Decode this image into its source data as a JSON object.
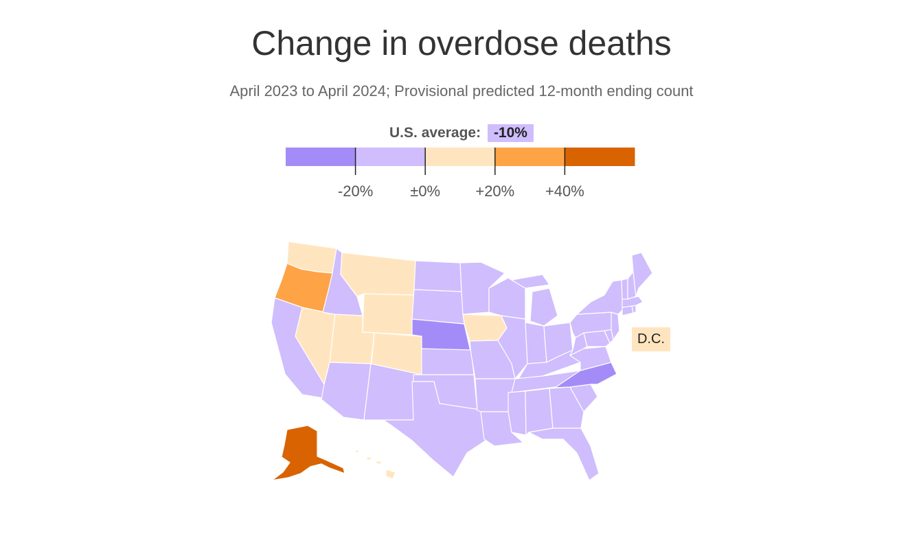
{
  "title": "Change in overdose deaths",
  "subtitle": "April 2023 to April 2024; Provisional predicted 12-month ending count",
  "us_average": {
    "label": "U.S. average:",
    "value": "-10%",
    "bin": 1
  },
  "legend": {
    "bins": [
      {
        "color": "#a48cf8"
      },
      {
        "color": "#cfbdfd"
      },
      {
        "color": "#ffe5bf"
      },
      {
        "color": "#ffa347"
      },
      {
        "color": "#d96300"
      }
    ],
    "ticks": [
      "-20%",
      "±0%",
      "+20%",
      "+40%"
    ]
  },
  "dc": {
    "label": "D.C.",
    "bin": 2
  },
  "state_bins": {
    "WA": 2,
    "OR": 3,
    "CA": 1,
    "NV": 2,
    "ID": 1,
    "MT": 2,
    "WY": 2,
    "UT": 2,
    "CO": 2,
    "AZ": 1,
    "NM": 1,
    "ND": 1,
    "SD": 1,
    "NE": 0,
    "KS": 1,
    "OK": 1,
    "TX": 1,
    "MN": 1,
    "IA": 2,
    "MO": 1,
    "AR": 1,
    "LA": 1,
    "WI": 1,
    "IL": 1,
    "MI": 1,
    "IN": 1,
    "OH": 1,
    "KY": 1,
    "TN": 1,
    "MS": 1,
    "AL": 1,
    "GA": 1,
    "FL": 1,
    "SC": 1,
    "NC": 0,
    "VA": 1,
    "WV": 1,
    "MD": 1,
    "DE": 1,
    "PA": 1,
    "NJ": 1,
    "NY": 1,
    "CT": 1,
    "RI": 1,
    "MA": 1,
    "VT": 1,
    "NH": 1,
    "ME": 1,
    "AK": 4,
    "HI": 2
  }
}
